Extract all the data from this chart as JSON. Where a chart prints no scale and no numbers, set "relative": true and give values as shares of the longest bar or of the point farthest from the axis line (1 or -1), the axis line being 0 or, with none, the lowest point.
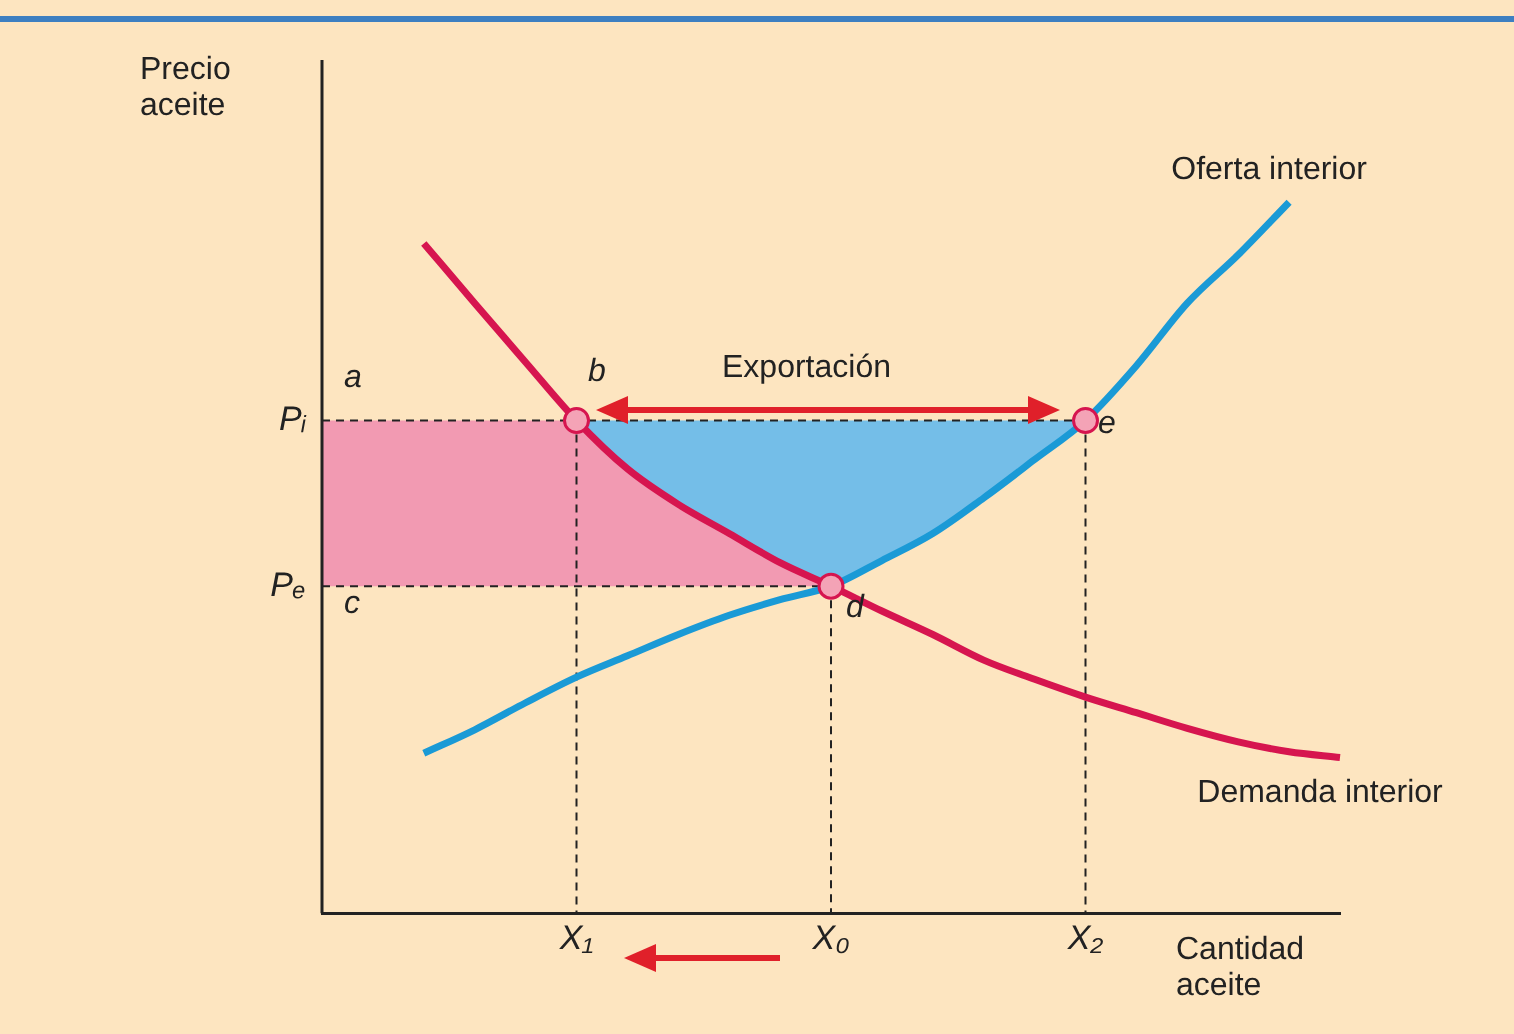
{
  "chart_data": {
    "type": "line",
    "relative": true,
    "xlabel": "Cantidad aceite",
    "ylabel": "Precio aceite",
    "grid": false,
    "legend": false,
    "categories": [
      null,
      null,
      null,
      null,
      null,
      "X₁",
      null,
      null,
      null,
      null,
      "X₀",
      null,
      null,
      null,
      null,
      "X₂",
      null,
      null,
      null,
      null,
      null
    ],
    "series": [
      {
        "name": "Demanda interior",
        "color": "#d6154f",
        "values": [
          null,
          null,
          0.942,
          0.858,
          0.775,
          0.693,
          0.625,
          0.575,
          0.534,
          0.493,
          0.46,
          0.425,
          0.392,
          0.356,
          0.329,
          0.304,
          0.282,
          0.26,
          0.241,
          0.227,
          0.219
        ]
      },
      {
        "name": "Oferta interior",
        "color": "#1a9ad6",
        "values": [
          null,
          null,
          0.225,
          0.258,
          0.296,
          0.332,
          0.362,
          0.392,
          0.419,
          0.441,
          0.46,
          0.496,
          0.534,
          0.584,
          0.638,
          0.693,
          0.77,
          0.858,
          0.926,
          1.0,
          null
        ]
      },
      {
        "type": "scatter",
        "color": "#f4a3b6",
        "values": [
          null,
          null,
          null,
          null,
          null,
          0.693,
          null,
          null,
          null,
          null,
          0.46,
          null,
          null,
          null,
          null,
          0.693,
          null,
          null,
          null,
          null,
          null
        ]
      }
    ],
    "ref_lines": [
      {
        "axis": "y",
        "value": 0.693,
        "label": "Pᵢ",
        "line_style": "dashed"
      },
      {
        "axis": "y",
        "value": 0.46,
        "label": "Pₑ",
        "line_style": "dashed"
      }
    ],
    "annotations": [
      "a",
      "b",
      "c",
      "d",
      "e",
      "Exportación"
    ]
  }
}
